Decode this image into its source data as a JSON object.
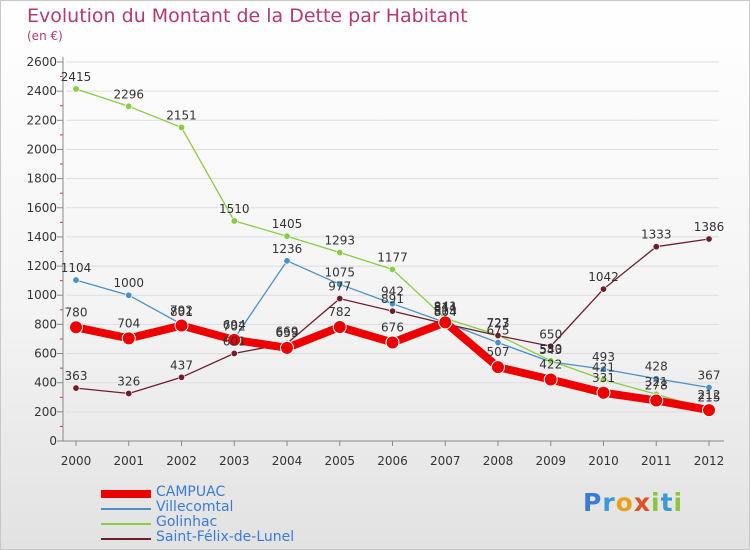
{
  "title": "Evolution du Montant de la Dette par Habitant",
  "subtitle": "(en €)",
  "brand": "Proxiti",
  "colors": {
    "title": "#b33a6e",
    "axis": "#888888",
    "grid": "#dddddd",
    "tick_text": "#333333",
    "value_text": "#333333",
    "legend_text": "#3a7bd5"
  },
  "chart_data": {
    "type": "line",
    "categories": [
      "2000",
      "2001",
      "2002",
      "2003",
      "2004",
      "2005",
      "2006",
      "2007",
      "2008",
      "2009",
      "2010",
      "2011",
      "2012"
    ],
    "ylim": [
      0,
      2600
    ],
    "yticks": [
      "0",
      "200",
      "400",
      "600",
      "800",
      "1000",
      "1200",
      "1400",
      "1600",
      "1800",
      "2000",
      "2200",
      "2400",
      "2600"
    ],
    "grid": true,
    "legend_position": "bottom-left",
    "series": [
      {
        "name": "CAMPUAC",
        "color": "#ee0000",
        "bold": true,
        "values": [
          780,
          704,
          792,
          694,
          639,
          782,
          676,
          814,
          507,
          422,
          331,
          278,
          212
        ]
      },
      {
        "name": "Villecomtal",
        "color": "#4a90c8",
        "bold": false,
        "values": [
          1104,
          1000,
          801,
          702,
          1236,
          1075,
          942,
          813,
          675,
          543,
          493,
          428,
          367
        ]
      },
      {
        "name": "Golinhac",
        "color": "#88cc44",
        "bold": false,
        "values": [
          2415,
          2296,
          2151,
          1510,
          1405,
          1293,
          1177,
          841,
          727,
          550,
          421,
          321,
          215
        ]
      },
      {
        "name": "Saint-Félix-de-Lunel",
        "color": "#6e1e2a",
        "bold": false,
        "values": [
          363,
          326,
          437,
          601,
          669,
          977,
          891,
          804,
          723,
          650,
          1042,
          1333,
          1386
        ]
      }
    ]
  }
}
